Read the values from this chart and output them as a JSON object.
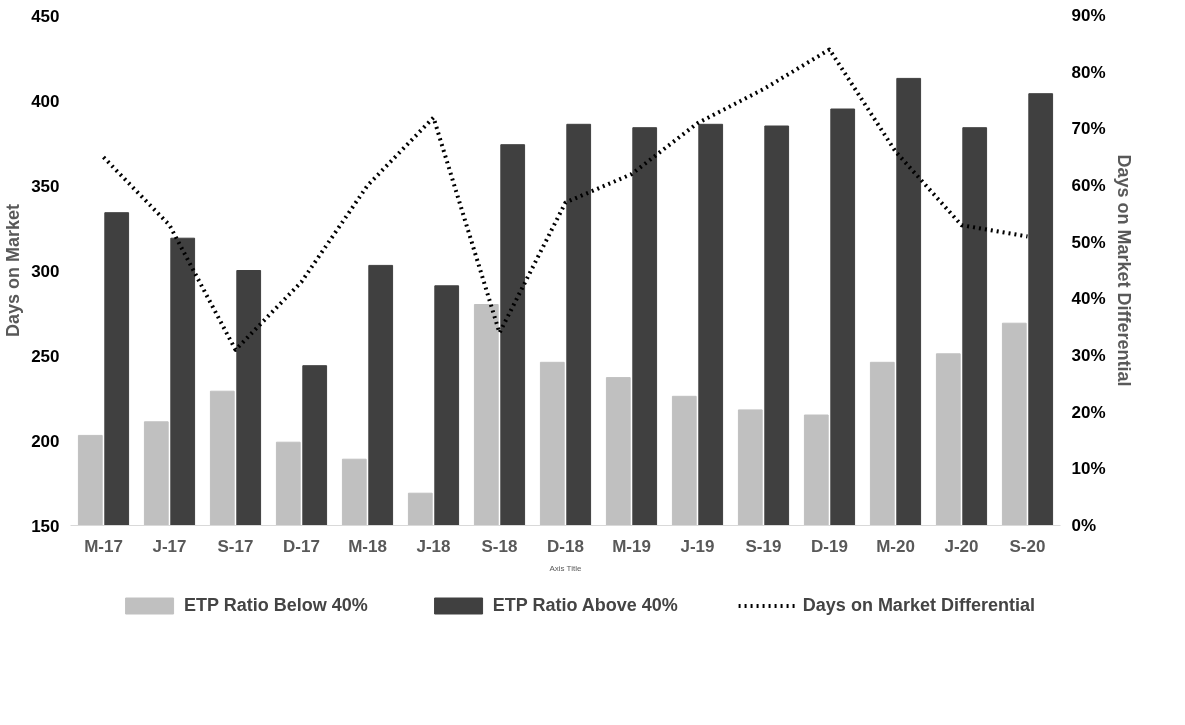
{
  "chart_data": {
    "type": "bar",
    "xlabel": "Axis Title",
    "ylabel": "Days on Market",
    "y2label": "Days on Market Differential",
    "categories": [
      "M-17",
      "J-17",
      "S-17",
      "D-17",
      "M-18",
      "J-18",
      "S-18",
      "D-18",
      "M-19",
      "J-19",
      "S-19",
      "D-19",
      "M-20",
      "J-20",
      "S-20"
    ],
    "series": [
      {
        "name": "ETP Ratio Below 40%",
        "color": "#c0c0c0",
        "values": [
          203,
          211,
          229,
          199,
          189,
          169,
          280,
          246,
          237,
          226,
          218,
          215,
          246,
          251,
          269
        ]
      },
      {
        "name": "ETP Ratio Above 40%",
        "color": "#404040",
        "values": [
          334,
          319,
          300,
          244,
          303,
          291,
          374,
          386,
          384,
          386,
          385,
          395,
          413,
          384,
          404
        ]
      },
      {
        "name": "Days on Market Differential",
        "type": "line",
        "axis": "y2",
        "color": "#000000",
        "line_style": "dotted",
        "values": [
          65,
          53,
          31,
          43,
          60,
          72,
          34,
          57,
          62,
          71,
          77,
          84,
          66,
          53,
          51
        ]
      }
    ],
    "ylim": [
      150,
      450
    ],
    "yticks": [
      150,
      200,
      250,
      300,
      350,
      400,
      450
    ],
    "y2lim": [
      0,
      90
    ],
    "y2ticks": [
      {
        "value": 0,
        "label": "0%"
      },
      {
        "value": 10,
        "label": "10%"
      },
      {
        "value": 20,
        "label": "20%"
      },
      {
        "value": 30,
        "label": "30%"
      },
      {
        "value": 40,
        "label": "40%"
      },
      {
        "value": 50,
        "label": "50%"
      },
      {
        "value": 60,
        "label": "60%"
      },
      {
        "value": 70,
        "label": "70%"
      },
      {
        "value": 80,
        "label": "80%"
      },
      {
        "value": 90,
        "label": "90%"
      }
    ],
    "grid": false,
    "legend": "bottom"
  }
}
